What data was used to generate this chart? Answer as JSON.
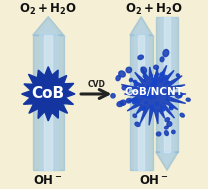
{
  "background_color": "#f5f0d5",
  "left_label": "CoB",
  "right_label": "CoB/NCNT",
  "arrow_label": "CVD",
  "top_label_left": "O₂ + H₂O",
  "top_label_right": "O₂ + H₂O",
  "bottom_label_left": "OH⁻",
  "bottom_label_right": "OH⁻",
  "cob_color": "#1435a0",
  "cob_color2": "#1a40b8",
  "ncnt_dot_color": "#1a40b8",
  "arrow_body_edge": "#8ab8d8",
  "arrow_body_center": "#ddeef8",
  "label_fontsize": 8.5,
  "cob_label_fontsize": 11,
  "cob_label_color": "#ffffff",
  "ncnt_label_color": "#ffffff",
  "ncnt_label_fontsize": 7.5,
  "cvd_arrow_color": "#222222",
  "cvd_label_fontsize": 5.5
}
